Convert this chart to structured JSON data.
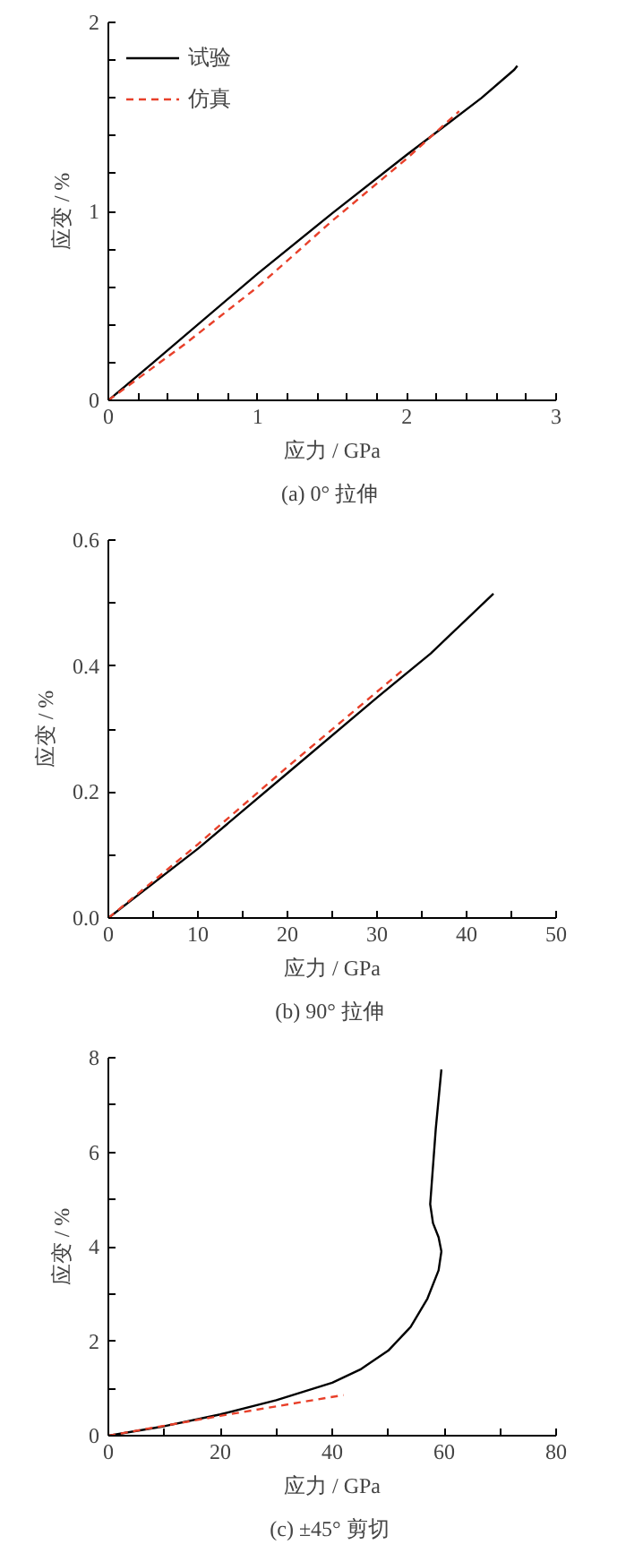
{
  "chart_data": [
    {
      "type": "line",
      "title": "(a)  0° 拉伸",
      "xlabel": "应力 / GPa",
      "ylabel": "应变 / %",
      "xlim": [
        0,
        3
      ],
      "ylim": [
        0,
        2
      ],
      "legend": "top left",
      "grid": false,
      "xticks": [
        0,
        {
          "value": 0.2,
          "label": null
        },
        {
          "value": 0.4,
          "label": null
        },
        {
          "value": 0.6,
          "label": null
        },
        {
          "value": 0.8,
          "label": null
        },
        1,
        {
          "value": 1.2,
          "label": null
        },
        {
          "value": 1.4,
          "label": null
        },
        {
          "value": 1.6,
          "label": null
        },
        {
          "value": 1.8,
          "label": null
        },
        2,
        {
          "value": 2.2,
          "label": null
        },
        {
          "value": 2.4,
          "label": null
        },
        {
          "value": 2.6,
          "label": null
        },
        {
          "value": 2.8,
          "label": null
        },
        3
      ],
      "yticks": [
        0,
        {
          "value": 0.2,
          "label": null
        },
        {
          "value": 0.4,
          "label": null
        },
        {
          "value": 0.6,
          "label": null
        },
        {
          "value": 0.8,
          "label": null
        },
        1,
        {
          "value": 1.2,
          "label": null
        },
        {
          "value": 1.4,
          "label": null
        },
        {
          "value": 1.6,
          "label": null
        },
        {
          "value": 1.8,
          "label": null
        },
        2
      ],
      "series": [
        {
          "name": "试验",
          "color": "#000000",
          "line_style": "solid",
          "x": [
            0,
            0.3,
            1,
            1.5,
            2,
            2.5,
            2.72,
            2.74
          ],
          "values": [
            0,
            0.2,
            0.67,
            0.99,
            1.3,
            1.6,
            1.75,
            1.77
          ]
        },
        {
          "name": "仿真",
          "color": "#e8402a",
          "line_style": "dashed",
          "x": [
            0,
            0.5,
            1,
            1.5,
            2,
            2.35
          ],
          "values": [
            0,
            0.29,
            0.6,
            0.95,
            1.28,
            1.53
          ]
        }
      ]
    },
    {
      "type": "line",
      "title": "(b)  90° 拉伸",
      "xlabel": "应力 / GPa",
      "ylabel": "应变 / %",
      "xlim": [
        0,
        50
      ],
      "ylim": [
        0,
        0.6
      ],
      "grid": false,
      "xticks": [
        0,
        {
          "value": 5,
          "label": null
        },
        10,
        {
          "value": 15,
          "label": null
        },
        20,
        {
          "value": 25,
          "label": null
        },
        30,
        {
          "value": 35,
          "label": null
        },
        40,
        {
          "value": 45,
          "label": null
        },
        50
      ],
      "yticks": [
        {
          "value": 0,
          "label": "0.0"
        },
        {
          "value": 0.1,
          "label": null
        },
        0.2,
        {
          "value": 0.3,
          "label": null
        },
        0.4,
        {
          "value": 0.5,
          "label": null
        },
        0.6
      ],
      "series": [
        {
          "color": "#000000",
          "line_style": "solid",
          "x": [
            0,
            10,
            20,
            30,
            36,
            43
          ],
          "values": [
            0,
            0.11,
            0.23,
            0.35,
            0.42,
            0.515
          ]
        },
        {
          "color": "#e8402a",
          "line_style": "dashed",
          "x": [
            0,
            10,
            20,
            33
          ],
          "values": [
            0,
            0.117,
            0.24,
            0.395
          ]
        }
      ]
    },
    {
      "type": "line",
      "title": "(c)  ±45° 剪切",
      "xlabel": "应力 / GPa",
      "ylabel": "应变 / %",
      "xlim": [
        0,
        80
      ],
      "ylim": [
        0,
        8
      ],
      "grid": false,
      "xticks": [
        0,
        {
          "value": 10,
          "label": null
        },
        20,
        {
          "value": 30,
          "label": null
        },
        40,
        {
          "value": 50,
          "label": null
        },
        60,
        {
          "value": 70,
          "label": null
        },
        80
      ],
      "yticks": [
        0,
        {
          "value": 1,
          "label": null
        },
        2,
        {
          "value": 3,
          "label": null
        },
        4,
        {
          "value": 5,
          "label": null
        },
        6,
        {
          "value": 7,
          "label": null
        },
        8
      ],
      "series": [
        {
          "color": "#000000",
          "line_style": "solid",
          "x": [
            0,
            10,
            20,
            30,
            40,
            45,
            50,
            54,
            57,
            59,
            59.5,
            59,
            58,
            57.5,
            58.5,
            59.5
          ],
          "values": [
            0,
            0.2,
            0.45,
            0.75,
            1.12,
            1.4,
            1.8,
            2.3,
            2.9,
            3.5,
            3.9,
            4.2,
            4.5,
            4.9,
            6.5,
            7.75
          ]
        },
        {
          "color": "#e8402a",
          "line_style": "dashed",
          "x": [
            0,
            20,
            42
          ],
          "values": [
            0,
            0.42,
            0.86
          ]
        }
      ]
    }
  ]
}
